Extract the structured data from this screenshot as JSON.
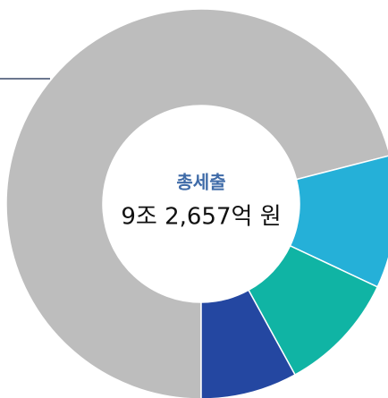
{
  "chart_data": {
    "type": "donut",
    "center_title": "총세출",
    "center_value": "9조 2,657억 원",
    "values": [
      71,
      11,
      10,
      8
    ],
    "colors": [
      "#bdbdbd",
      "#25b0d8",
      "#10b4a4",
      "#2447a1"
    ]
  }
}
